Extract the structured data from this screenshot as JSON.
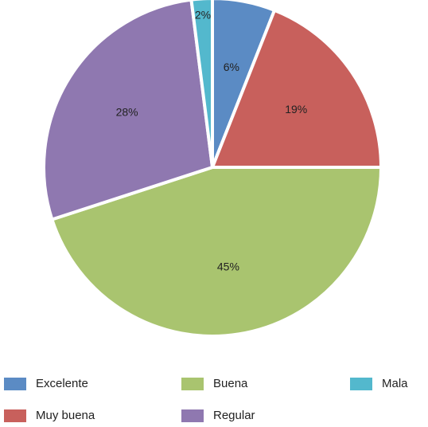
{
  "chart_data": {
    "type": "pie",
    "categories": [
      "Excelente",
      "Muy buena",
      "Buena",
      "Regular",
      "Mala"
    ],
    "values": [
      6,
      19,
      45,
      28,
      2
    ],
    "value_labels": [
      "6%",
      "19%",
      "45%",
      "28%",
      "2%"
    ],
    "colors": [
      "#5b8bc4",
      "#c8605c",
      "#a9c46f",
      "#8f78b0",
      "#53b8cd"
    ]
  }
}
